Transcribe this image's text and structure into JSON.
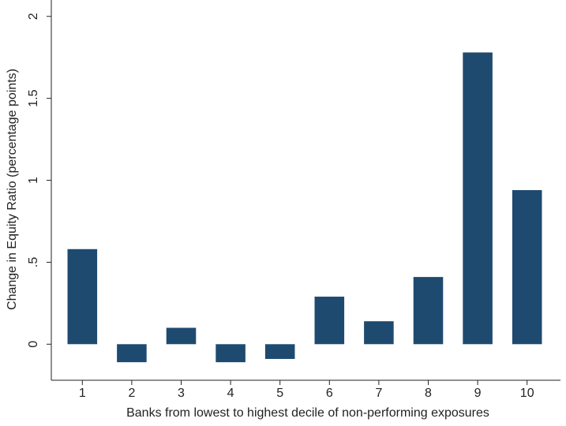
{
  "chart_data": {
    "type": "bar",
    "x_label": "Banks from lowest to highest decile of non-performing exposures",
    "y_label": "Change in Equity Ratio (percentage points)",
    "categories": [
      "1",
      "2",
      "3",
      "4",
      "5",
      "6",
      "7",
      "8",
      "9",
      "10"
    ],
    "values": [
      0.58,
      -0.11,
      0.1,
      -0.11,
      -0.09,
      0.29,
      0.14,
      0.41,
      1.78,
      0.94
    ],
    "color": "#1f4a70",
    "ylim": [
      -0.22,
      2.1
    ],
    "yticks": [
      0,
      {
        "value": 0.5,
        "label": ".5"
      },
      1,
      1.5,
      2
    ],
    "grid": false
  }
}
